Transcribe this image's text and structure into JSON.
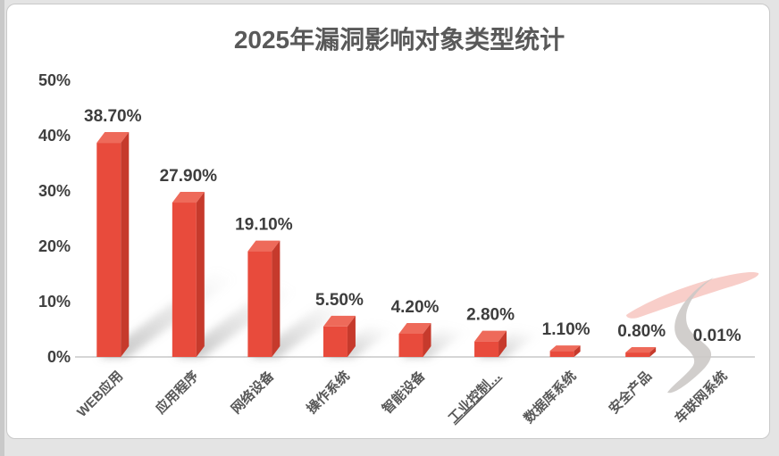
{
  "window": {
    "background_color": "#e4e4e4",
    "card_background": "#ffffff",
    "card_border_color": "#c9c9c9"
  },
  "chart_data": {
    "type": "bar",
    "title": "2025年漏洞影响对象类型统计",
    "categories": [
      "WEB应用",
      "应用程序",
      "网络设备",
      "操作系统",
      "智能设备",
      "工业控制…",
      "数据库系统",
      "安全产品",
      "车联网系统"
    ],
    "values": [
      38.7,
      27.9,
      19.1,
      5.5,
      4.2,
      2.8,
      1.1,
      0.8,
      0.01
    ],
    "data_labels": [
      "38.70%",
      "27.90%",
      "19.10%",
      "5.50%",
      "4.20%",
      "2.80%",
      "1.10%",
      "0.80%",
      "0.01%"
    ],
    "y_ticks": [
      "0%",
      "10%",
      "20%",
      "30%",
      "40%",
      "50%"
    ],
    "y_tick_values": [
      0,
      10,
      20,
      30,
      40,
      50
    ],
    "ylim": [
      0,
      50
    ],
    "xlabel": "",
    "ylabel": "",
    "legend": "none",
    "grid": false,
    "bar_style": "3d-box-with-floor-shadow",
    "underlined_category_index": 5,
    "colors": {
      "bar_front": "#e84b3c",
      "bar_top": "#ee6a5a",
      "bar_side": "#c63a2c",
      "axis_line": "#d6d6d6",
      "title_text": "#595959",
      "tick_text": "#3f3f3f",
      "data_label_text": "#3d3d3d",
      "category_text": "#595959",
      "shadow": "#8f8f8f",
      "watermark_pink": "#f8cbc6",
      "watermark_gray": "#ccc9c7"
    }
  }
}
